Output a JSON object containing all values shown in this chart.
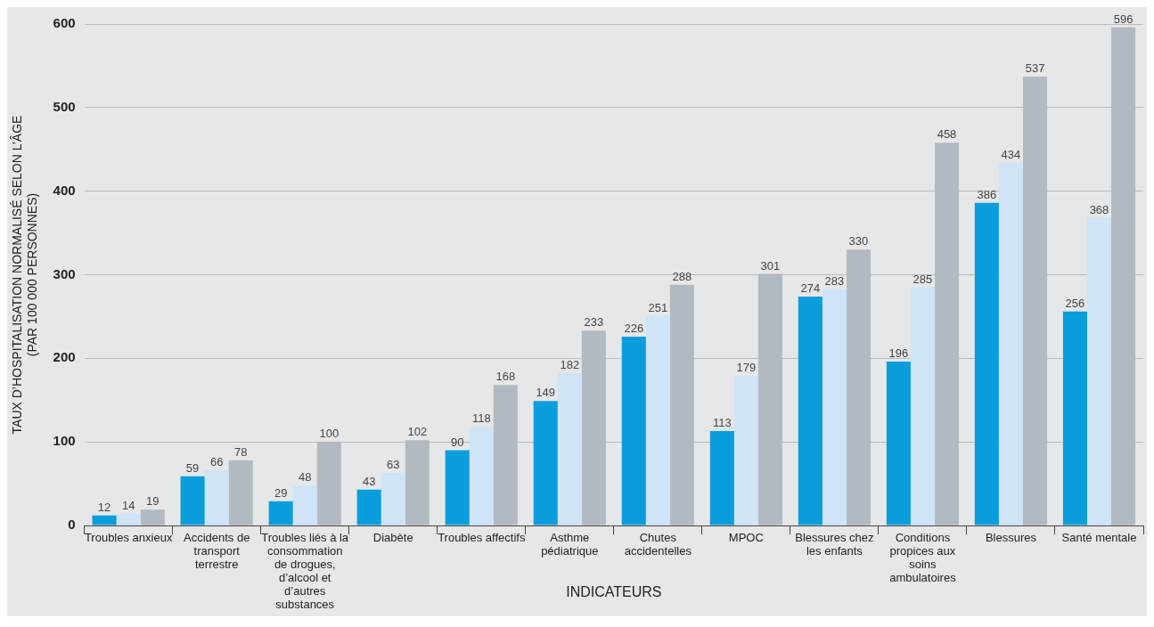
{
  "chart_data": {
    "type": "bar",
    "xlabel": "INDICATEURS",
    "ylabel": "TAUX D’HOSPITALISATION NORMALISÉ SELON L’ÂGE (PAR 100 000 PERSONNES)",
    "categories": [
      "Troubles anxieux",
      "Accidents de transport terrestre",
      "Troubles liés à la consommation de drogues, d’alcool et d’autres substances",
      "Diabète",
      "Troubles affectifs",
      "Asthme pédiatrique",
      "Chutes accidentelles",
      "MPOC",
      "Blessures chez les enfants",
      "Conditions propices aux soins ambulatoires",
      "Blessures",
      "Santé mentale"
    ],
    "series": [
      {
        "color": "#0a9ddc",
        "values": [
          12,
          59,
          29,
          43,
          90,
          149,
          226,
          113,
          274,
          196,
          386,
          256
        ]
      },
      {
        "color": "#cfe4f6",
        "values": [
          14,
          66,
          48,
          63,
          118,
          182,
          251,
          179,
          283,
          285,
          434,
          368
        ]
      },
      {
        "color": "#b3b9c1",
        "values": [
          19,
          78,
          100,
          102,
          168,
          233,
          288,
          301,
          330,
          458,
          537,
          596
        ]
      }
    ],
    "ylim": [
      0,
      600
    ],
    "yticks": [
      0,
      100,
      200,
      300,
      400,
      500,
      600
    ],
    "grid": "y",
    "data_labels": true,
    "legend": false
  }
}
